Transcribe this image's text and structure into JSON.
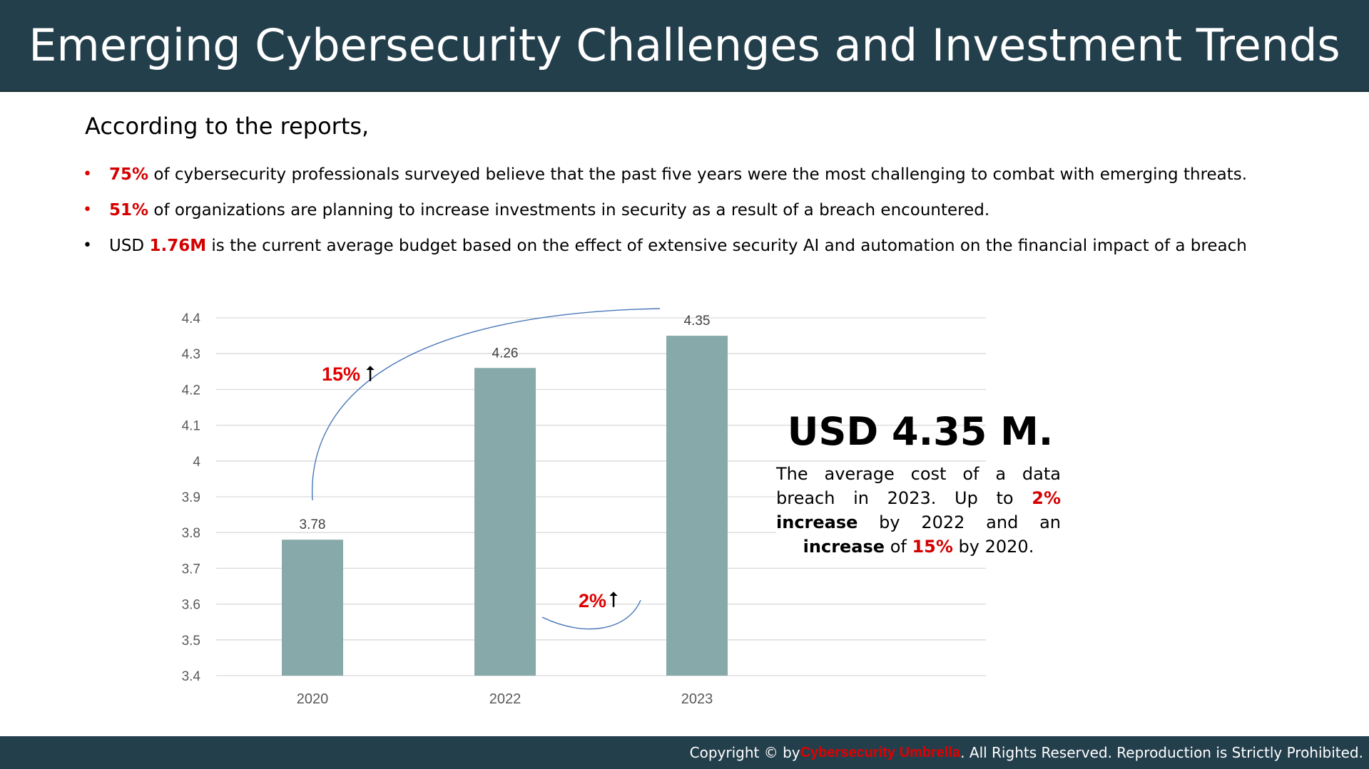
{
  "header": {
    "title": "Emerging Cybersecurity Challenges and Investment Trends"
  },
  "intro": "According to the reports,",
  "bullets": [
    {
      "highlight": "75%",
      "text": " of cybersecurity professionals surveyed believe that the past five years were the most challenging to combat with emerging threats.",
      "bullet_color": "#e00000"
    },
    {
      "highlight": "51%",
      "text": " of organizations are planning to increase investments in security as a result of a breach encountered.",
      "bullet_color": "#e00000"
    },
    {
      "prefix": "USD ",
      "highlight": "1.76M",
      "text": " is the current average budget based on the effect of extensive security AI and automation on the financial impact of a breach",
      "bullet_color": "#000000"
    }
  ],
  "chart_data": {
    "type": "bar",
    "categories": [
      "2020",
      "2022",
      "2023"
    ],
    "values": [
      3.78,
      4.26,
      4.35
    ],
    "data_labels": [
      "3.78",
      "4.26",
      "4.35"
    ],
    "y_ticks": [
      "4.4",
      "4.3",
      "4.2",
      "4.1",
      "4",
      "3.9",
      "3.8",
      "3.7",
      "3.6",
      "3.5",
      "3.4"
    ],
    "ylim": [
      3.4,
      4.4
    ],
    "grid": true,
    "bar_color": "#87a9aa",
    "annotations": [
      {
        "text": "15%",
        "arrow": "⭡"
      },
      {
        "text": "2%",
        "arrow": "⭡"
      }
    ]
  },
  "callout": {
    "title": "USD 4.35 M.",
    "t1": "The average cost of a data breach in 2023. Up to ",
    "h1": "2%",
    "b1": " increase",
    "t2": " by 2022 and an ",
    "b2": "increase",
    "t3": " of ",
    "h2": "15%",
    "t4": " by 2020."
  },
  "footer": {
    "prefix": "Copyright © by ",
    "brand": "Cybersecurity Umbrella",
    "suffix": ". All Rights Reserved. Reproduction is Strictly Prohibited."
  },
  "colors": {
    "header_bg": "#243f4c",
    "accent_red": "#d40000",
    "bar": "#87a9aa"
  }
}
